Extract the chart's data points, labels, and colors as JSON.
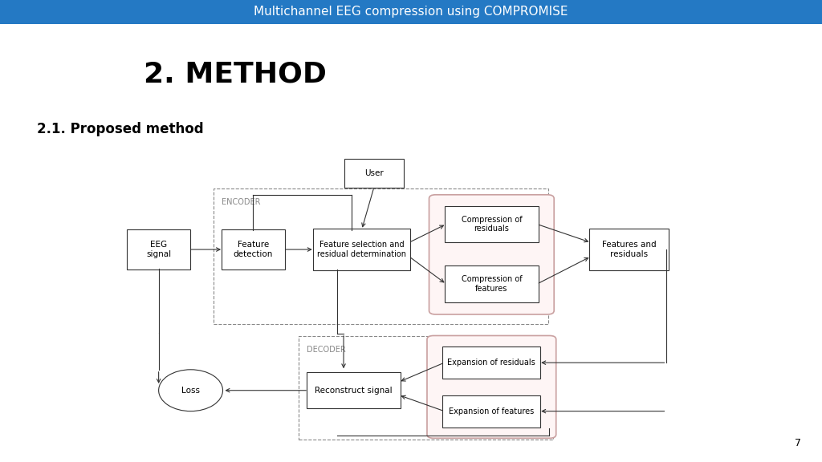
{
  "title": "Multichannel EEG compression using COMPROMISE",
  "title_bg": "#2479C4",
  "title_color": "#FFFFFF",
  "slide_title": "2. METHOD",
  "section_title": "2.1. Proposed method",
  "page_number": "7",
  "bg_color": "#FFFFFF",
  "title_bar_height": 0.052,
  "font_size_title": 11,
  "font_size_slide": 26,
  "font_size_section": 12,
  "font_size_box": 7.5,
  "font_size_label": 7
}
